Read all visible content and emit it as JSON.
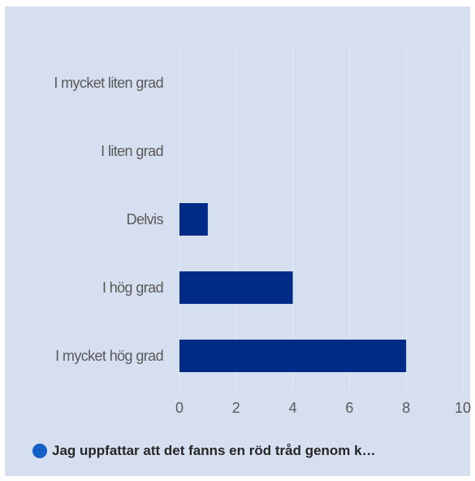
{
  "chart_data": {
    "type": "bar",
    "orientation": "horizontal",
    "categories": [
      "I mycket liten grad",
      "I liten grad",
      "Delvis",
      "I hög grad",
      "I mycket hög grad"
    ],
    "series": [
      {
        "name": "Jag uppfattar att det fanns en röd tråd genom k…",
        "values": [
          0,
          0,
          1,
          4,
          8
        ]
      }
    ],
    "x_ticks": [
      "0",
      "2",
      "4",
      "6",
      "8",
      "10"
    ],
    "xlim": [
      0,
      10
    ],
    "grid": true,
    "legend": "bottom-left",
    "colors": {
      "bar": "#002b87",
      "legend_marker": "#1560c6",
      "grid": "#e6ebf5",
      "panel": "#d6dff0"
    }
  }
}
